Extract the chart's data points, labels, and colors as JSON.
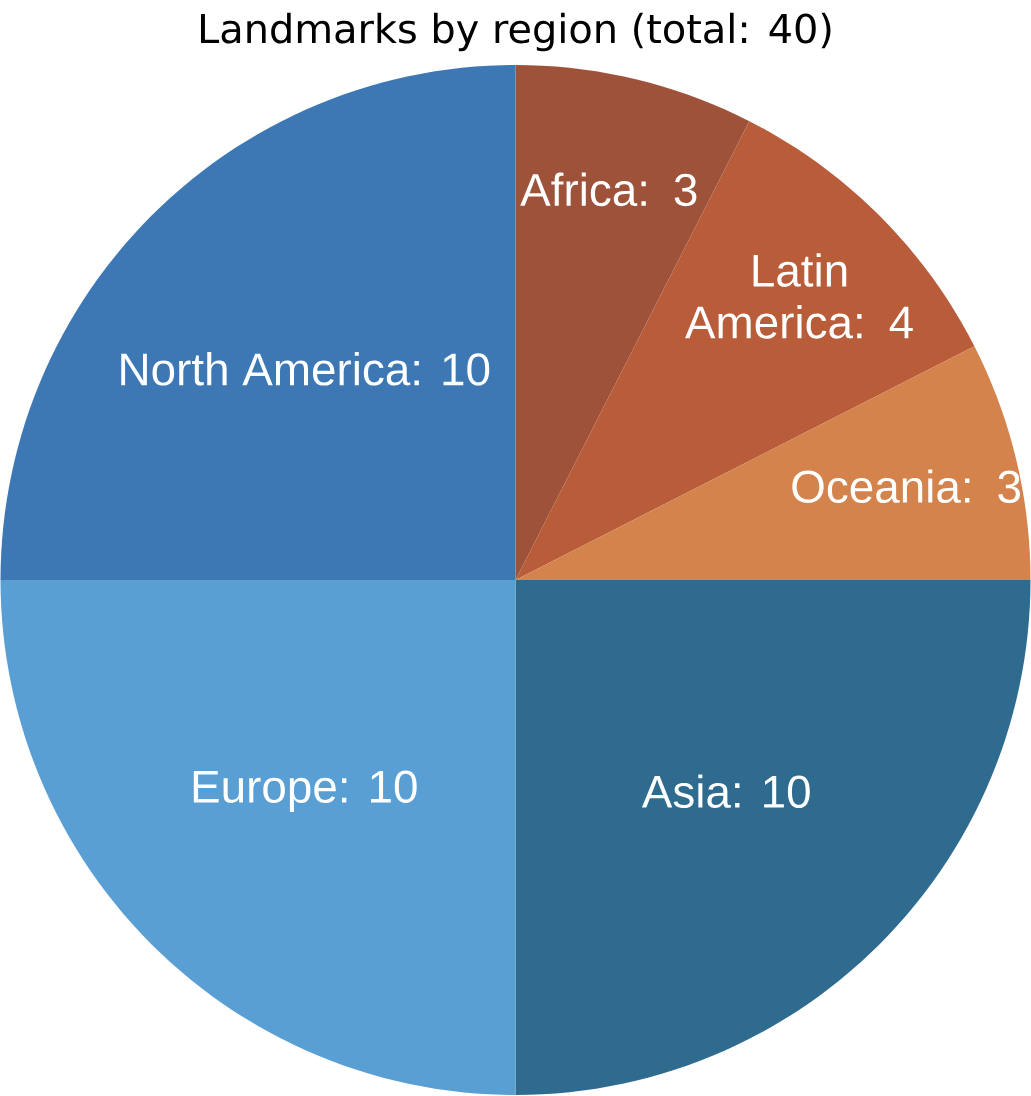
{
  "chart_data": {
    "type": "pie",
    "title": "Landmarks by region (total: 40)",
    "categories": [
      "Africa: 3",
      "Latin America: 4",
      "Oceania: 3",
      "Asia: 10",
      "Europe: 10",
      "North America: 10"
    ],
    "values": [
      3,
      4,
      3,
      10,
      10,
      10
    ],
    "colors": [
      "#9e523a",
      "#b85c3a",
      "#d4834c",
      "#2e6b8e",
      "#5a9fd4",
      "#3d78b5"
    ]
  }
}
